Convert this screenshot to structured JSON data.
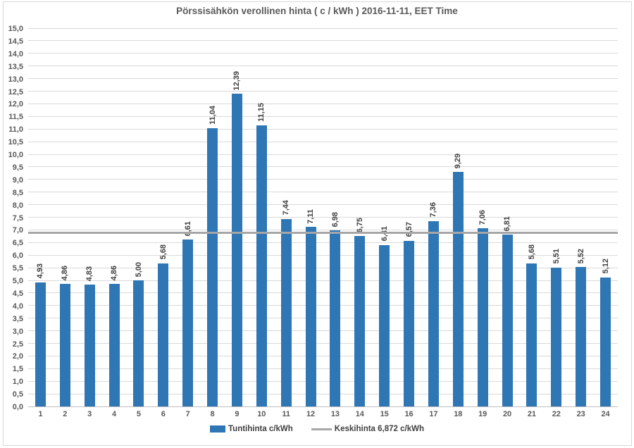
{
  "title": "Pörssisähkön verollinen hinta ( c / kWh ) 2016-11-11, EET Time",
  "chart_data": {
    "type": "bar",
    "title": "Pörssisähkön verollinen hinta ( c / kWh ) 2016-11-11, EET Time",
    "categories": [
      "1",
      "2",
      "3",
      "4",
      "5",
      "6",
      "7",
      "8",
      "9",
      "10",
      "11",
      "12",
      "13",
      "14",
      "15",
      "16",
      "17",
      "18",
      "19",
      "20",
      "21",
      "22",
      "23",
      "24"
    ],
    "series": [
      {
        "name": "Tuntihinta c/kWh",
        "values": [
          4.93,
          4.86,
          4.83,
          4.86,
          5.0,
          5.68,
          6.61,
          11.04,
          12.39,
          11.15,
          7.44,
          7.11,
          6.98,
          6.75,
          6.41,
          6.57,
          7.36,
          9.29,
          7.06,
          6.81,
          5.68,
          5.51,
          5.52,
          5.12
        ]
      }
    ],
    "value_labels": [
      "4,93",
      "4,86",
      "4,83",
      "4,86",
      "5,00",
      "5,68",
      "6,61",
      "11,04",
      "12,39",
      "11,15",
      "7,44",
      "7,11",
      "6,98",
      "6,75",
      "6,41",
      "6,57",
      "7,36",
      "9,29",
      "7,06",
      "6,81",
      "5,68",
      "5,51",
      "5,52",
      "5,12"
    ],
    "average_line": {
      "name": "Keskihinta 6,872 c/kWh",
      "value": 6.872,
      "value_label": "6,872"
    },
    "ylim": [
      0,
      15
    ],
    "ytick_step": 0.5,
    "ytick_labels_example": "0,0 … 15,0 (comma decimal)",
    "grid": true,
    "legend_position": "bottom",
    "colors": {
      "bar": "#2f76b5",
      "average_line": "#a6a6a6",
      "gridline": "#d9d9d9",
      "axis_line": "#bfbfbf",
      "title_text": "#595959",
      "tick_text": "#595959",
      "value_label_text": "#404040"
    }
  },
  "legend": {
    "items": [
      {
        "label": "Tuntihinta c/kWh",
        "swatch": "bar"
      },
      {
        "label": "Keskihinta 6,872 c/kWh",
        "swatch": "line"
      }
    ]
  }
}
